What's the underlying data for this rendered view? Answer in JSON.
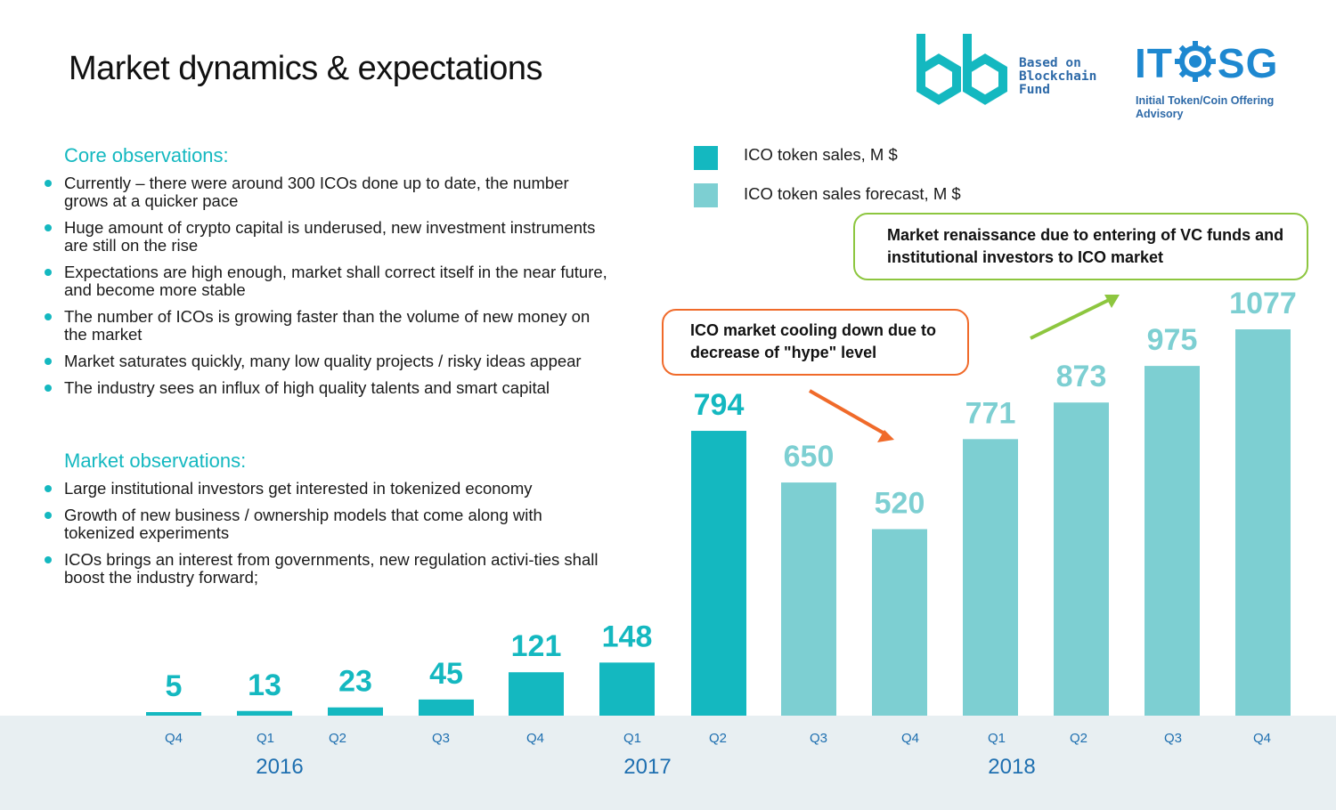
{
  "title": "Market dynamics & expectations",
  "logos": {
    "bb": {
      "line1": "Based on",
      "line2": "Blockchain",
      "line3": "Fund"
    },
    "itosg": {
      "left": "IT",
      "right": "SG",
      "subtitle": "Initial Token/Coin Offering Advisory"
    }
  },
  "core": {
    "heading": "Core observations:",
    "items": [
      "Currently – there were around 300 ICOs done up to date, the number grows at a quicker pace",
      "Huge amount of crypto capital is underused, new investment instruments are still on the rise",
      "Expectations are high enough, market shall correct itself in the near future, and become more stable",
      "The number of ICOs is growing faster than the volume of new money on the market",
      "Market saturates quickly, many low quality projects / risky ideas appear",
      "The industry sees an influx of high quality talents and smart capital"
    ]
  },
  "market": {
    "heading": "Market observations:",
    "items": [
      "Large institutional investors get interested in tokenized economy",
      "Growth of new business / ownership models that come along with tokenized experiments",
      "ICOs brings an interest from governments, new regulation activi-ties shall boost the industry forward;"
    ]
  },
  "callouts": {
    "cooling": "ICO market cooling down due to decrease of \"hype\" level",
    "renaissance": "Market renaissance due to entering of VC funds and institutional investors to ICO market"
  },
  "colors": {
    "actual": "#14b8c0",
    "forecast": "#7dcfd2",
    "axis_band": "#e8eff2",
    "tick_text": "#1e6fb0",
    "cooling_border": "#f06a2a",
    "renaissance_border": "#8dc63f"
  },
  "chart_data": {
    "type": "bar",
    "categories": [
      "Q4",
      "Q1",
      "Q2",
      "Q3",
      "Q4",
      "Q1",
      "Q2",
      "Q3",
      "Q4",
      "Q1",
      "Q2",
      "Q3",
      "Q4"
    ],
    "years": [
      "2016",
      "2017",
      "2018"
    ],
    "series": [
      {
        "name": "ICO token sales,  M $",
        "values": [
          5,
          13,
          23,
          45,
          121,
          148,
          794,
          null,
          null,
          null,
          null,
          null,
          null
        ]
      },
      {
        "name": "ICO token sales forecast,  M $",
        "values": [
          null,
          null,
          null,
          null,
          null,
          null,
          null,
          650,
          520,
          771,
          873,
          975,
          1077
        ]
      }
    ],
    "data_labels": [
      "5",
      "13",
      "23",
      "45",
      "121",
      "148",
      "794",
      "650",
      "520",
      "771",
      "873",
      "975",
      "1077"
    ],
    "ylim": [
      0,
      1077
    ],
    "grid": false,
    "legend_position": "top-right"
  }
}
